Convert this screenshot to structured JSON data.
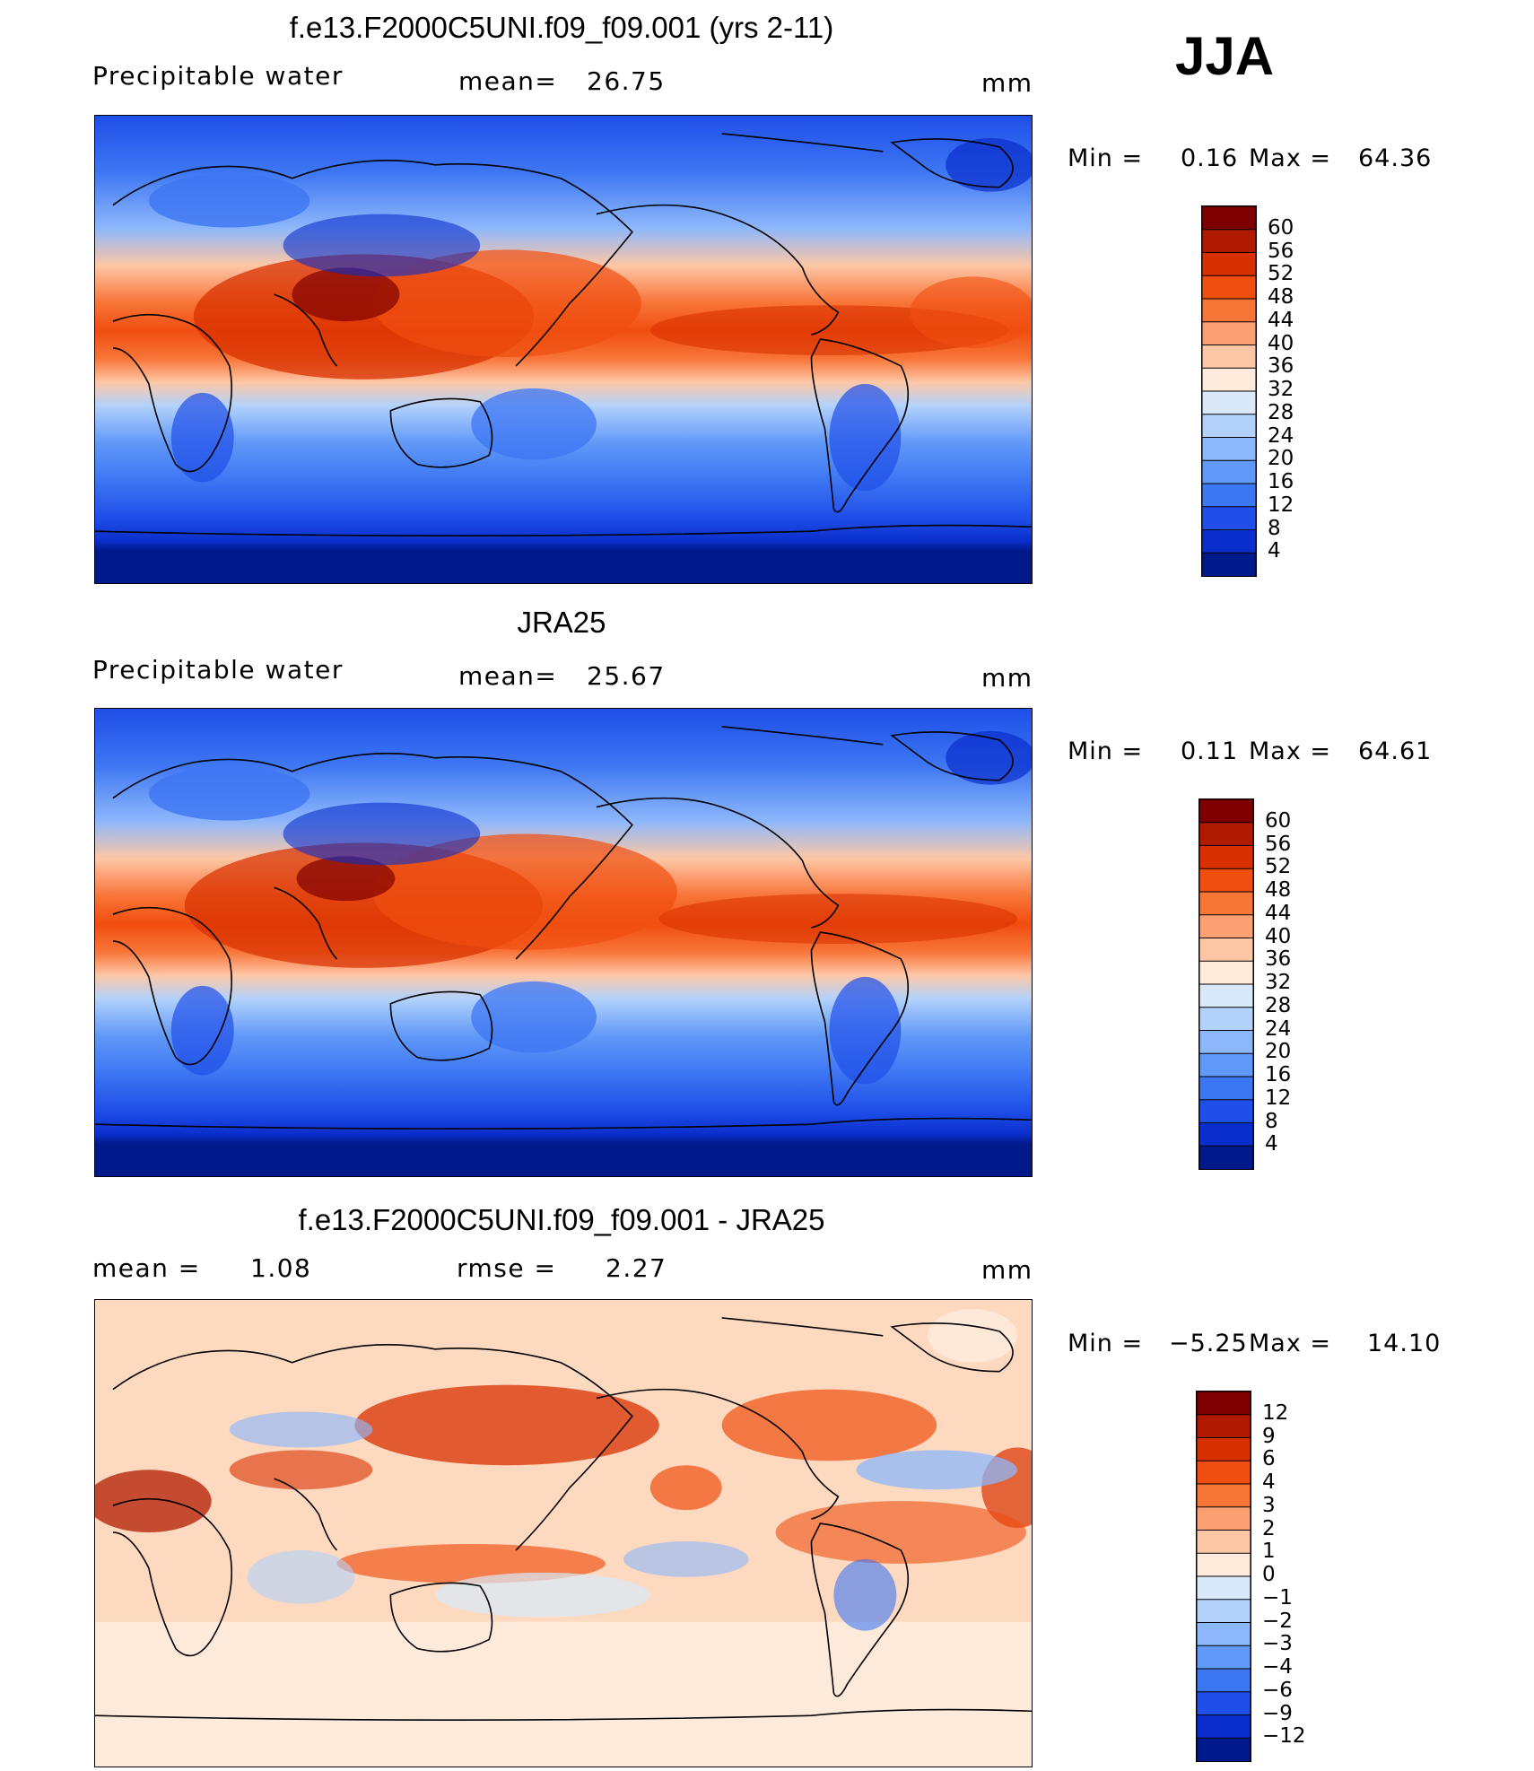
{
  "season": "JJA",
  "units": "mm",
  "panels": [
    {
      "title": "f.e13.F2000C5UNI.f09_f09.001 (yrs 2-11)",
      "variable": "Precipitable water",
      "stat1_label": "mean=",
      "stat1_value": "26.75",
      "units": "mm",
      "min_label": "Min =",
      "min_value": "0.16",
      "max_label": "Max =",
      "max_value": "64.36",
      "scale": "abs"
    },
    {
      "title": "JRA25",
      "variable": "Precipitable water",
      "stat1_label": "mean=",
      "stat1_value": "25.67",
      "units": "mm",
      "min_label": "Min =",
      "min_value": "0.11",
      "max_label": "Max =",
      "max_value": "64.61",
      "scale": "abs"
    },
    {
      "title": "f.e13.F2000C5UNI.f09_f09.001 - JRA25",
      "stat1_label": "mean =",
      "stat1_value": "1.08",
      "stat2_label": "rmse =",
      "stat2_value": "2.27",
      "units": "mm",
      "min_label": "Min =",
      "min_value": "−5.25",
      "max_label": "Max =",
      "max_value": "14.10",
      "scale": "diff"
    }
  ],
  "colorbars": {
    "abs": {
      "levels": [
        "60",
        "56",
        "52",
        "48",
        "44",
        "40",
        "36",
        "32",
        "28",
        "24",
        "20",
        "16",
        "12",
        "8",
        "4"
      ],
      "colors": [
        "#7f0000",
        "#b01a00",
        "#d83000",
        "#f04e10",
        "#f87538",
        "#fca074",
        "#fdc7a6",
        "#feeadb",
        "#d9e9fa",
        "#b3d2fb",
        "#8db7fb",
        "#6199f8",
        "#3d76f3",
        "#1f4ee8",
        "#0a2ecc",
        "#001a8c"
      ]
    },
    "diff": {
      "levels": [
        "12",
        "9",
        "6",
        "4",
        "3",
        "2",
        "1",
        "0",
        "−1",
        "−2",
        "−3",
        "−4",
        "−6",
        "−9",
        "−12"
      ],
      "colors": [
        "#7f0000",
        "#b01a00",
        "#d83000",
        "#f04e10",
        "#f87538",
        "#fca074",
        "#fdc7a6",
        "#feeadb",
        "#d9e9fa",
        "#b3d2fb",
        "#8db7fb",
        "#6199f8",
        "#3d76f3",
        "#1f4ee8",
        "#0a2ecc",
        "#001a8c"
      ]
    }
  }
}
